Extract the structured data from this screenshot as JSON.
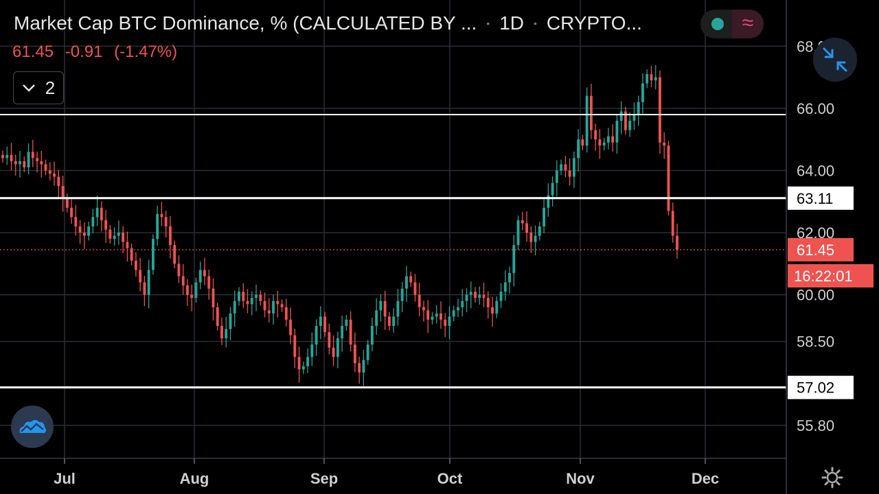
{
  "header": {
    "title": "Market Cap BTC Dominance, % (CALCULATED BY ...",
    "interval": "1D",
    "exchange": "CRYPTO...",
    "price": "61.45",
    "change": "-0.91",
    "change_pct": "(-1.47%)",
    "legend_count": "2"
  },
  "icons": {
    "collapse": "collapse-arrows-icon",
    "logo": "tradingview-cloud-icon",
    "settings": "gear-icon",
    "legend_toggle": "chevron-down-icon",
    "indicator_wave": "wave-icon"
  },
  "colors": {
    "up": "#26a69a",
    "down": "#ef5350",
    "accent_blue": "#2196f3",
    "background": "#000000",
    "grid": "#2a2e39"
  },
  "chart_data": {
    "type": "candlestick",
    "y_ticks": [
      "68.00",
      "66.00",
      "64.00",
      "62.00",
      "60.00",
      "58.50",
      "55.80"
    ],
    "y_tick_values": [
      68,
      66,
      64,
      62,
      60,
      58.5,
      55.8
    ],
    "x_ticks": [
      "Jul",
      "Aug",
      "Sep",
      "Oct",
      "Nov",
      "Dec"
    ],
    "horizontal_lines": [
      {
        "value": 65.8,
        "label": ""
      },
      {
        "value": 63.11,
        "label": "63.11"
      },
      {
        "value": 57.02,
        "label": "57.02"
      }
    ],
    "last_price": {
      "value": 61.45,
      "label": "61.45",
      "countdown": "16:22:01"
    },
    "series_close": [
      64.4,
      64.5,
      64.3,
      64.2,
      64.3,
      64.1,
      64.6,
      64.4,
      64.3,
      64.2,
      64.0,
      63.9,
      63.8,
      63.5,
      63.1,
      62.8,
      62.5,
      62.2,
      62.0,
      61.9,
      62.2,
      62.5,
      62.8,
      62.4,
      62.1,
      61.8,
      61.9,
      62.0,
      61.7,
      61.5,
      61.1,
      60.8,
      60.4,
      60.0,
      60.8,
      61.8,
      62.6,
      62.5,
      62.2,
      61.6,
      61.0,
      60.6,
      60.3,
      60.0,
      59.9,
      60.4,
      60.8,
      60.6,
      60.2,
      59.6,
      59.0,
      58.6,
      58.9,
      59.4,
      59.8,
      60.1,
      59.8,
      59.7,
      59.9,
      60.0,
      59.8,
      59.5,
      59.4,
      59.8,
      59.7,
      59.6,
      59.2,
      58.7,
      58.0,
      57.6,
      57.7,
      58.0,
      58.4,
      59.0,
      59.3,
      58.8,
      58.3,
      58.0,
      58.6,
      59.0,
      59.2,
      58.4,
      57.8,
      57.5,
      57.9,
      58.4,
      59.0,
      59.5,
      59.8,
      59.3,
      59.0,
      59.3,
      59.8,
      60.2,
      60.6,
      60.4,
      60.0,
      59.6,
      59.5,
      59.2,
      59.3,
      59.4,
      59.2,
      59.0,
      59.3,
      59.5,
      59.6,
      59.8,
      60.0,
      60.1,
      59.9,
      60.0,
      59.9,
      59.6,
      59.4,
      59.8,
      60.1,
      60.4,
      60.7,
      61.6,
      62.4,
      62.3,
      62.0,
      61.7,
      61.9,
      62.2,
      62.8,
      63.2,
      63.6,
      64.0,
      64.2,
      64.0,
      63.8,
      64.4,
      65.0,
      64.8,
      66.4,
      65.3,
      65.0,
      64.8,
      64.9,
      65.1,
      64.9,
      65.6,
      65.9,
      65.3,
      65.6,
      65.8,
      66.2,
      66.8,
      67.1,
      66.9,
      67.0,
      64.9,
      64.8,
      62.7,
      61.9,
      61.45
    ]
  }
}
